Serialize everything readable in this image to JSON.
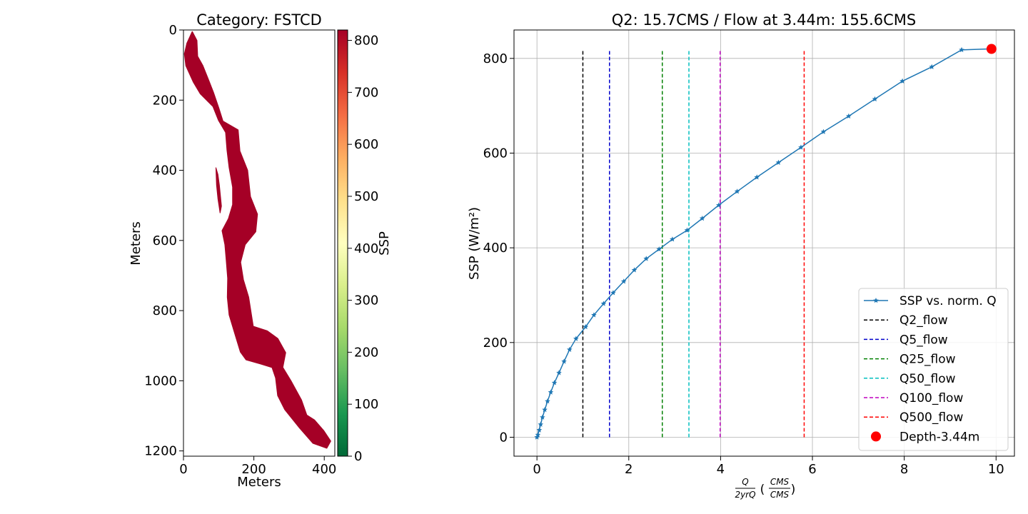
{
  "chart_data": [
    {
      "type": "heatmap",
      "title": "Category: FSTCD",
      "xlabel": "Meters",
      "ylabel": "Meters",
      "xlim": [
        0,
        430
      ],
      "ylim": [
        1215,
        0
      ],
      "x_ticks": [
        0,
        200,
        400
      ],
      "y_ticks": [
        0,
        200,
        400,
        600,
        800,
        1000,
        1200
      ],
      "colorbar": {
        "label": "SSP",
        "range": [
          0,
          820
        ],
        "ticks": [
          0,
          100,
          200,
          300,
          400,
          500,
          600,
          700,
          800
        ],
        "colormap": "RdYlGn_r",
        "stops": [
          "#006837",
          "#1a9850",
          "#66bd63",
          "#a6d96a",
          "#d9ef8b",
          "#ffffbf",
          "#fee08b",
          "#fdae61",
          "#f46d43",
          "#d73027",
          "#a50026"
        ]
      },
      "fill_color": "#a50026",
      "region_value": 820,
      "region_outline": [
        [
          25,
          5
        ],
        [
          38,
          30
        ],
        [
          40,
          75
        ],
        [
          55,
          102
        ],
        [
          72,
          145
        ],
        [
          85,
          178
        ],
        [
          100,
          222
        ],
        [
          112,
          260
        ],
        [
          155,
          285
        ],
        [
          160,
          345
        ],
        [
          182,
          400
        ],
        [
          190,
          475
        ],
        [
          210,
          525
        ],
        [
          205,
          575
        ],
        [
          175,
          612
        ],
        [
          162,
          662
        ],
        [
          170,
          712
        ],
        [
          185,
          762
        ],
        [
          198,
          845
        ],
        [
          238,
          858
        ],
        [
          268,
          880
        ],
        [
          290,
          920
        ],
        [
          282,
          962
        ],
        [
          305,
          1000
        ],
        [
          335,
          1055
        ],
        [
          350,
          1098
        ],
        [
          372,
          1112
        ],
        [
          398,
          1142
        ],
        [
          418,
          1172
        ],
        [
          407,
          1192
        ],
        [
          368,
          1178
        ],
        [
          328,
          1132
        ],
        [
          288,
          1082
        ],
        [
          268,
          1042
        ],
        [
          262,
          992
        ],
        [
          252,
          962
        ],
        [
          220,
          952
        ],
        [
          178,
          940
        ],
        [
          162,
          918
        ],
        [
          148,
          872
        ],
        [
          130,
          812
        ],
        [
          125,
          762
        ],
        [
          126,
          708
        ],
        [
          122,
          657
        ],
        [
          118,
          612
        ],
        [
          110,
          572
        ],
        [
          128,
          538
        ],
        [
          140,
          498
        ],
        [
          140,
          448
        ],
        [
          130,
          392
        ],
        [
          124,
          342
        ],
        [
          120,
          292
        ],
        [
          100,
          258
        ],
        [
          84,
          218
        ],
        [
          48,
          182
        ],
        [
          28,
          148
        ],
        [
          7,
          102
        ],
        [
          3,
          68
        ],
        [
          10,
          38
        ]
      ],
      "sliver_outline": [
        [
          92,
          392
        ],
        [
          98,
          412
        ],
        [
          102,
          442
        ],
        [
          108,
          502
        ],
        [
          104,
          522
        ],
        [
          98,
          482
        ],
        [
          94,
          442
        ]
      ]
    },
    {
      "type": "line",
      "title": "Q2: 15.7CMS / Flow at 3.44m: 155.6CMS",
      "xlabel": "Q / 2yrQ (CMS / CMS)",
      "ylabel": "SSP (W/m²)",
      "xlim": [
        -0.5,
        10.4
      ],
      "ylim": [
        -40,
        860
      ],
      "x_ticks": [
        0,
        2,
        4,
        6,
        8,
        10
      ],
      "y_ticks": [
        0,
        200,
        400,
        600,
        800
      ],
      "grid": true,
      "legend_position": "lower-right",
      "series": [
        {
          "name": "SSP vs. norm. Q",
          "color": "#1f77b4",
          "marker": "star",
          "x": [
            0,
            0.02,
            0.05,
            0.08,
            0.12,
            0.17,
            0.23,
            0.3,
            0.38,
            0.48,
            0.59,
            0.71,
            0.85,
            1.06,
            1.24,
            1.45,
            1.66,
            1.89,
            2.12,
            2.38,
            2.66,
            2.95,
            3.27,
            3.6,
            3.96,
            4.36,
            4.79,
            5.26,
            5.75,
            6.24,
            6.79,
            7.36,
            7.96,
            8.6,
            9.25,
            9.86
          ],
          "y": [
            0,
            5,
            15,
            27,
            42,
            58,
            76,
            95,
            115,
            136,
            160,
            185,
            208,
            233,
            258,
            282,
            305,
            329,
            353,
            377,
            397,
            418,
            437,
            462,
            490,
            519,
            549,
            580,
            612,
            645,
            678,
            714,
            752,
            782,
            818,
            820
          ]
        }
      ],
      "vlines": [
        {
          "name": "Q2_flow",
          "x": 1.0,
          "color": "#000000",
          "ymax": 820
        },
        {
          "name": "Q5_flow",
          "x": 1.58,
          "color": "#0000cc",
          "ymax": 820
        },
        {
          "name": "Q25_flow",
          "x": 2.73,
          "color": "#008000",
          "ymax": 820
        },
        {
          "name": "Q50_flow",
          "x": 3.31,
          "color": "#00bfbf",
          "ymax": 820
        },
        {
          "name": "Q100_flow",
          "x": 3.99,
          "color": "#bf00bf",
          "ymax": 820
        },
        {
          "name": "Q500_flow",
          "x": 5.82,
          "color": "#ff0000",
          "ymax": 820
        }
      ],
      "point": {
        "name": "Depth-3.44m",
        "x": 9.9,
        "y": 820,
        "color": "#ff0000"
      }
    }
  ]
}
